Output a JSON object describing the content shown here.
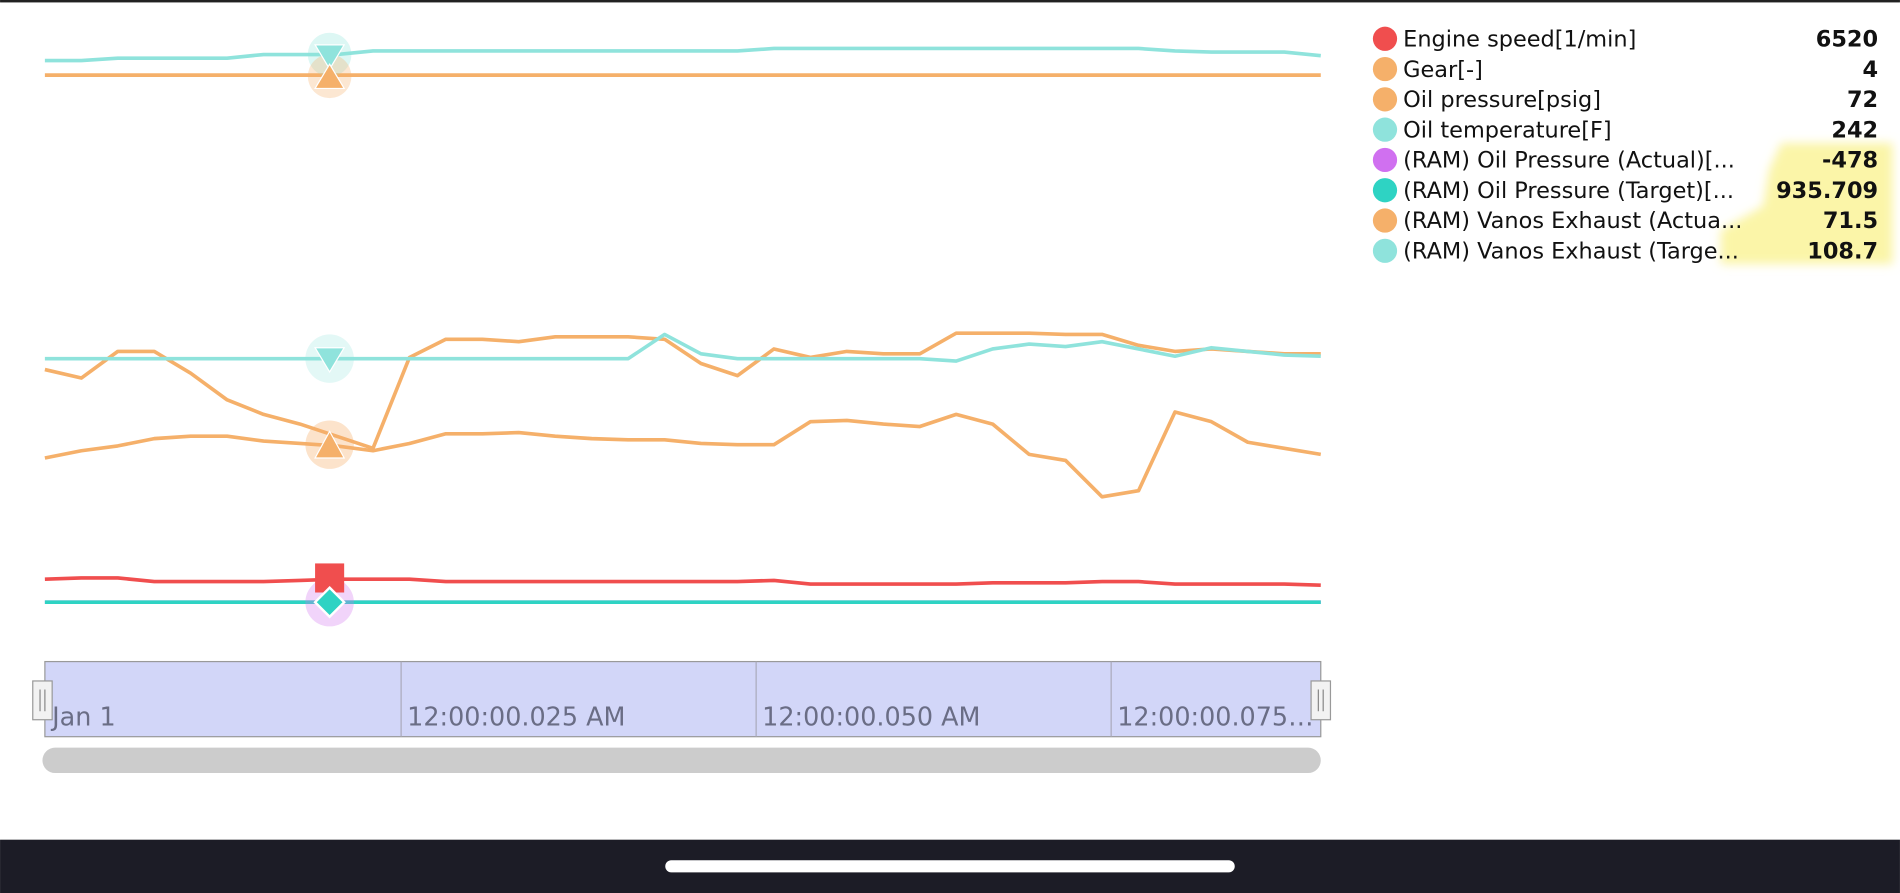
{
  "chart_data": {
    "type": "line",
    "ylim": [
      0,
      485
    ],
    "series": [
      {
        "name": "Engine speed[1/min]",
        "color": "#f04e4e",
        "current": 6520,
        "values": [
          32,
          33,
          33,
          30,
          30,
          30,
          30,
          31,
          32,
          32,
          32,
          30,
          30,
          30,
          30,
          30,
          30,
          30,
          30,
          30,
          31,
          28,
          28,
          28,
          28,
          28,
          29,
          29,
          29,
          30,
          30,
          28,
          28,
          28,
          28,
          27
        ]
      },
      {
        "name": "Gear[-]",
        "color": "#f5b06a",
        "current": 4,
        "values": [
          448,
          448,
          448,
          448,
          448,
          448,
          448,
          448,
          448,
          448,
          448,
          448,
          448,
          448,
          448,
          448,
          448,
          448,
          448,
          448,
          448,
          448,
          448,
          448,
          448,
          448,
          448,
          448,
          448,
          448,
          448,
          448,
          448,
          448,
          448,
          448
        ]
      },
      {
        "name": "Oil pressure[psig]",
        "color": "#f5b06a",
        "current": 72,
        "values": [
          132,
          138,
          142,
          148,
          150,
          150,
          146,
          144,
          142,
          138,
          144,
          152,
          152,
          153,
          150,
          148,
          147,
          147,
          144,
          143,
          143,
          162,
          163,
          160,
          158,
          168,
          160,
          135,
          130,
          100,
          105,
          170,
          162,
          145,
          140,
          135
        ]
      },
      {
        "name": "Oil temperature[F]",
        "color": "#8fe3dc",
        "current": 242,
        "values": [
          460,
          460,
          462,
          462,
          462,
          462,
          465,
          465,
          465,
          468,
          468,
          468,
          468,
          468,
          468,
          468,
          468,
          468,
          468,
          468,
          470,
          470,
          470,
          470,
          470,
          470,
          470,
          470,
          470,
          470,
          470,
          468,
          467,
          467,
          467,
          464
        ]
      },
      {
        "name": "(RAM) Oil Pressure (Actual)[...",
        "color": "#d070f0",
        "current": -478,
        "values": [
          13,
          13,
          13,
          13,
          13,
          13,
          13,
          13,
          13,
          13,
          13,
          13,
          13,
          13,
          13,
          13,
          13,
          13,
          13,
          13,
          13,
          13,
          13,
          13,
          13,
          13,
          13,
          13,
          13,
          13,
          13,
          13,
          13,
          13,
          13,
          13
        ]
      },
      {
        "name": "(RAM) Oil Pressure (Target)[...",
        "color": "#2ed3c3",
        "current": 935.709,
        "values": [
          13,
          13,
          13,
          13,
          13,
          13,
          13,
          13,
          13,
          13,
          13,
          13,
          13,
          13,
          13,
          13,
          13,
          13,
          13,
          13,
          13,
          13,
          13,
          13,
          13,
          13,
          13,
          13,
          13,
          13,
          13,
          13,
          13,
          13,
          13,
          13
        ]
      },
      {
        "name": "(RAM) Vanos Exhaust (Actua...",
        "color": "#f5b06a",
        "current": 71.5,
        "values": [
          205,
          198,
          220,
          220,
          202,
          180,
          168,
          160,
          150,
          140,
          215,
          230,
          230,
          228,
          232,
          232,
          232,
          230,
          210,
          200,
          222,
          215,
          220,
          218,
          218,
          235,
          235,
          235,
          234,
          234,
          225,
          220,
          222,
          220,
          218,
          218
        ]
      },
      {
        "name": "(RAM) Vanos Exhaust (Targe...",
        "color": "#8fe3dc",
        "current": 108.7,
        "values": [
          214,
          214,
          214,
          214,
          214,
          214,
          214,
          214,
          214,
          214,
          214,
          214,
          214,
          214,
          214,
          214,
          214,
          234,
          218,
          214,
          214,
          214,
          214,
          214,
          214,
          212,
          222,
          226,
          224,
          228,
          222,
          216,
          223,
          220,
          217,
          216
        ]
      }
    ],
    "x_labels": [
      "Jan 1",
      "12:00:00.025 AM",
      "12:00:00.050 AM",
      "12:00:00.075…"
    ]
  }
}
